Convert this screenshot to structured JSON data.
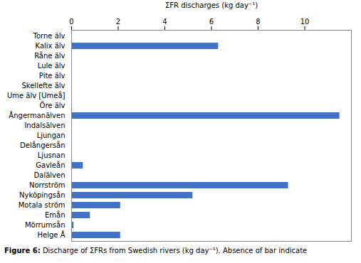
{
  "chart_data": {
    "type": "bar",
    "orientation": "horizontal",
    "categories": [
      "Torne älv",
      "Kalix älv",
      "Råne älv",
      "Lule älv",
      "Pite älv",
      "Skellefte älv",
      "Ume älv [Umeå]",
      "Öre älv",
      "Ångermanälven",
      "Indalsälven",
      "Ljungan",
      "Delångersån",
      "Ljusnan",
      "Gavleån",
      "Dalälven",
      "Norrström",
      "Nyköpingsån",
      "Motala ström",
      "Emån",
      "Mörrumsån",
      "Helge Å"
    ],
    "values": [
      0,
      6.3,
      0,
      0,
      0,
      0,
      0,
      0,
      11.5,
      0,
      0,
      0,
      0,
      0.5,
      0,
      9.3,
      5.2,
      2.1,
      0.8,
      0.1,
      2.1
    ],
    "color": "#4472C4",
    "xlabel": "ΣFR discharges (kg day⁻¹)",
    "xlim": [
      0,
      12
    ],
    "xticks": [
      0,
      2,
      4,
      6,
      8,
      10
    ],
    "caption": "Figure 6: Discharge of ΣFRs from Swedish rivers (kg day⁻¹). Absence of bar indicate",
    "grid": false
  }
}
